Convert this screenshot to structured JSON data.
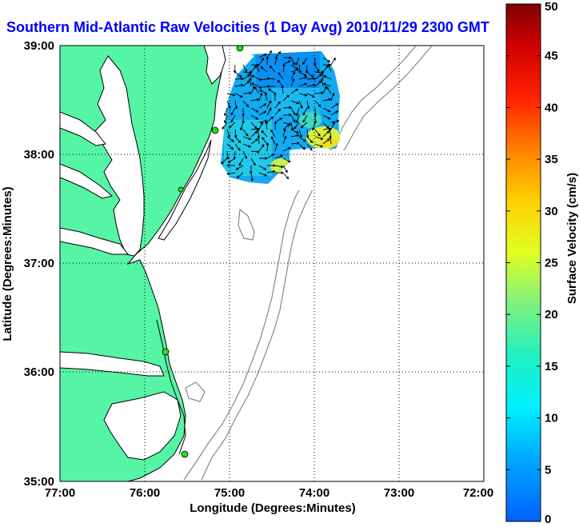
{
  "title": "Southern Mid-Atlantic Raw Velocities (1 Day Avg) 2010/11/29 2300 GMT",
  "map": {
    "x_ticks": [
      "77:00",
      "76:00",
      "75:00",
      "74:00",
      "73:00",
      "72:00"
    ],
    "y_ticks": [
      "39:00",
      "38:00",
      "37:00",
      "36:00",
      "35:00"
    ],
    "xlabel": "Longitude (Degrees:Minutes)",
    "ylabel": "Latitude (Degrees:Minutes)",
    "lon_range": [
      -77,
      -72
    ],
    "lat_range": [
      35,
      39
    ],
    "grid": true,
    "colors": {
      "land": "#55f5a5",
      "water": "#ffffff",
      "coastline": "#000000",
      "bathymetry": "#888888",
      "stations": "#22dd22",
      "title": "#0000ff"
    }
  },
  "colorbar": {
    "label": "Surface Velocity (cm/s)",
    "ticks": [
      "0",
      "5",
      "10",
      "15",
      "20",
      "25",
      "30",
      "35",
      "40",
      "45",
      "50"
    ],
    "range": [
      0,
      50
    ]
  }
}
